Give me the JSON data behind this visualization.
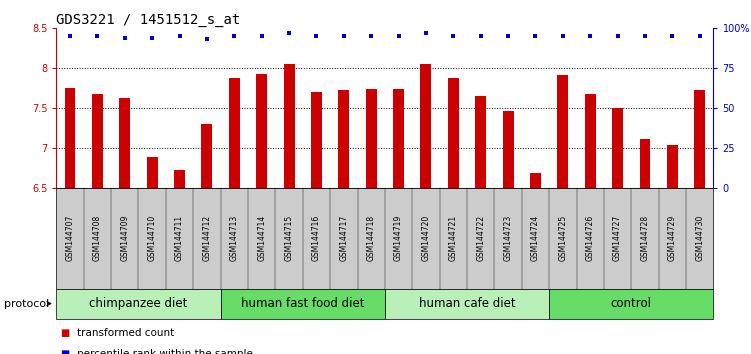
{
  "title": "GDS3221 / 1451512_s_at",
  "samples": [
    "GSM144707",
    "GSM144708",
    "GSM144709",
    "GSM144710",
    "GSM144711",
    "GSM144712",
    "GSM144713",
    "GSM144714",
    "GSM144715",
    "GSM144716",
    "GSM144717",
    "GSM144718",
    "GSM144719",
    "GSM144720",
    "GSM144721",
    "GSM144722",
    "GSM144723",
    "GSM144724",
    "GSM144725",
    "GSM144726",
    "GSM144727",
    "GSM144728",
    "GSM144729",
    "GSM144730"
  ],
  "bar_values": [
    7.75,
    7.67,
    7.63,
    6.88,
    6.72,
    7.3,
    7.87,
    7.93,
    8.05,
    7.7,
    7.72,
    7.74,
    7.74,
    8.05,
    7.87,
    7.65,
    7.46,
    6.68,
    7.92,
    7.68,
    7.5,
    7.11,
    7.03,
    7.73
  ],
  "percentile_pct": [
    95,
    95,
    94,
    94,
    95,
    93,
    95,
    95,
    97,
    95,
    95,
    95,
    95,
    97,
    95,
    95,
    95,
    95,
    95,
    95,
    95,
    95,
    95,
    95
  ],
  "bar_color": "#cc0000",
  "dot_color": "#0000cc",
  "ylim_left": [
    6.5,
    8.5
  ],
  "ylim_right": [
    0,
    100
  ],
  "yticks_left": [
    6.5,
    7.0,
    7.5,
    8.0,
    8.5
  ],
  "yticks_right": [
    0,
    25,
    50,
    75,
    100
  ],
  "ytick_labels_right": [
    "0",
    "25",
    "50",
    "75",
    "100%"
  ],
  "grid_values": [
    7.0,
    7.5,
    8.0
  ],
  "groups": [
    {
      "label": "chimpanzee diet",
      "start": 0,
      "end": 6,
      "color": "#b8f0b8"
    },
    {
      "label": "human fast food diet",
      "start": 6,
      "end": 12,
      "color": "#66dd66"
    },
    {
      "label": "human cafe diet",
      "start": 12,
      "end": 18,
      "color": "#b8f0b8"
    },
    {
      "label": "control",
      "start": 18,
      "end": 24,
      "color": "#66dd66"
    }
  ],
  "protocol_label": "protocol",
  "legend_bar_label": "transformed count",
  "legend_dot_label": "percentile rank within the sample",
  "background_color": "#ffffff",
  "plot_bg_color": "#ffffff",
  "title_fontsize": 10,
  "tick_fontsize": 7,
  "group_fontsize": 8.5,
  "bar_width": 0.4
}
